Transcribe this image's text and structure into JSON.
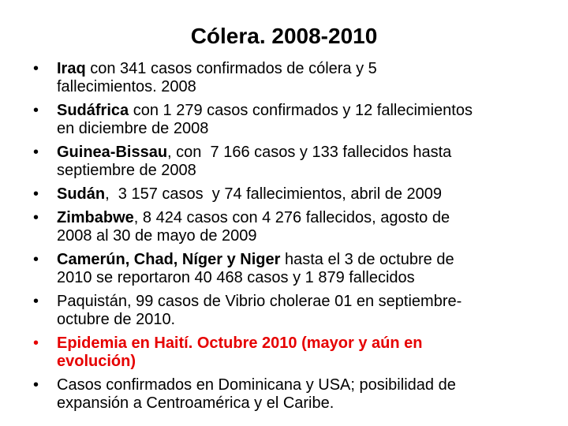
{
  "title": "Cólera. 2008-2010",
  "bullets": [
    {
      "lines": [
        [
          {
            "text": "Iraq",
            "bold": true
          },
          {
            "text": " con 341 casos confirmados de cólera y 5",
            "bold": false
          }
        ],
        [
          {
            "text": "fallecimientos. 2008",
            "bold": false
          }
        ]
      ]
    },
    {
      "lines": [
        [
          {
            "text": "Sudáfrica",
            "bold": true
          },
          {
            "text": " con 1 279 casos confirmados y 12 fallecimientos",
            "bold": false
          }
        ],
        [
          {
            "text": "en diciembre de 2008",
            "bold": false
          }
        ]
      ]
    },
    {
      "lines": [
        [
          {
            "text": "Guinea-Bissau",
            "bold": true
          },
          {
            "text": ", con  7 166 casos y 133 fallecidos hasta",
            "bold": false
          }
        ],
        [
          {
            "text": "septiembre de 2008",
            "bold": false
          }
        ]
      ]
    },
    {
      "lines": [
        [
          {
            "text": "Sudán",
            "bold": true
          },
          {
            "text": ",  3 157 casos  y 74 fallecimientos, abril de 2009",
            "bold": false
          }
        ]
      ]
    },
    {
      "lines": [
        [
          {
            "text": "Zimbabwe",
            "bold": true
          },
          {
            "text": ", 8 424 casos con 4 276 fallecidos, agosto de",
            "bold": false
          }
        ],
        [
          {
            "text": "2008 al 30 de mayo de 2009",
            "bold": false
          }
        ]
      ]
    },
    {
      "lines": [
        [
          {
            "text": "Camerún, Chad, Níger y Niger",
            "bold": true
          },
          {
            "text": " hasta el 3 de octubre de",
            "bold": false
          }
        ],
        [
          {
            "text": "2010 se reportaron 40 468 casos y 1 879 fallecidos",
            "bold": false
          }
        ]
      ]
    },
    {
      "lines": [
        [
          {
            "text": "Paquistán, 99 casos de Vibrio cholerae 01 en septiembre-",
            "bold": false
          }
        ],
        [
          {
            "text": "octubre de 2010.",
            "bold": false
          }
        ]
      ]
    },
    {
      "color": "#e60000",
      "lines": [
        [
          {
            "text": "Epidemia en Haití. Octubre 2010 (mayor y aún en",
            "bold": true
          }
        ],
        [
          {
            "text": "evolución)",
            "bold": true
          }
        ]
      ]
    },
    {
      "lines": [
        [
          {
            "text": "Casos confirmados en Dominicana y USA; posibilidad de",
            "bold": false
          }
        ],
        [
          {
            "text": "expansión a Centroamérica y el Caribe.",
            "bold": false
          }
        ]
      ]
    }
  ]
}
